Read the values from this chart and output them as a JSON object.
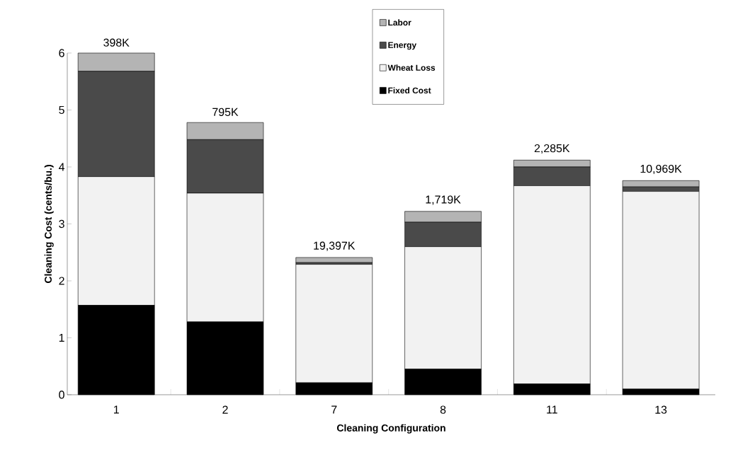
{
  "chart_data": {
    "type": "bar",
    "stacked": true,
    "xlabel": "Cleaning Configuration",
    "ylabel": "Cleaning Cost (cents/bu.)",
    "categories": [
      "1",
      "2",
      "7",
      "8",
      "11",
      "13"
    ],
    "series": [
      {
        "name": "Fixed Cost",
        "color": "#000000",
        "values": [
          1.57,
          1.28,
          0.21,
          0.45,
          0.19,
          0.1
        ]
      },
      {
        "name": "Wheat Loss",
        "color": "#f2f2f2",
        "values": [
          2.26,
          2.26,
          2.08,
          2.15,
          3.48,
          3.47
        ]
      },
      {
        "name": "Energy",
        "color": "#4a4a4a",
        "values": [
          1.85,
          0.94,
          0.03,
          0.43,
          0.33,
          0.08
        ]
      },
      {
        "name": "Labor",
        "color": "#b4b4b4",
        "values": [
          0.32,
          0.3,
          0.09,
          0.19,
          0.12,
          0.11
        ]
      }
    ],
    "annotations": [
      {
        "text": "398K",
        "x": "1",
        "y": 6.0
      },
      {
        "text": "795K",
        "x": "2",
        "y": 4.78
      },
      {
        "text": "19,397K",
        "x": "7",
        "y": 2.41
      },
      {
        "text": "1,719K",
        "x": "8",
        "y": 3.22
      },
      {
        "text": "2,285K",
        "x": "11",
        "y": 4.12
      },
      {
        "text": "10,969K",
        "x": "13",
        "y": 3.76
      }
    ],
    "ylim": [
      0,
      6
    ],
    "yticks": [
      0,
      1,
      2,
      3,
      4,
      5,
      6
    ],
    "grid": false,
    "legend": "top"
  }
}
